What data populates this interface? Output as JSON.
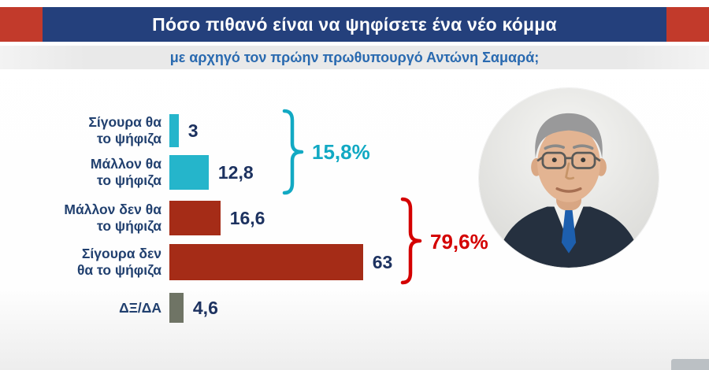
{
  "header": {
    "title": "Πόσο πιθανό είναι να ψηφίσετε ένα νέο κόμμα",
    "subtitle": "με αρχηγό τον πρώην πρωθυπουργό Αντώνη Σαμαρά;"
  },
  "colors": {
    "title_bg": "#24407c",
    "accent_red": "#c23a2b",
    "subtitle_bg": "#e9e9e9",
    "subtitle_text": "#2a6ab0",
    "label_navy": "#21406f",
    "value_navy": "#1d3260",
    "group_cyan": "#12a9c3",
    "group_red": "#d40000"
  },
  "chart_data": {
    "type": "bar",
    "orientation": "horizontal",
    "title": "Πόσο πιθανό είναι να ψηφίσετε ένα νέο κόμμα",
    "subtitle": "με αρχηγό τον πρώην πρωθυπουργό Αντώνη Σαμαρά;",
    "categories": [
      "Σίγουρα θα το ψήφιζα",
      "Μάλλον θα το ψήφιζα",
      "Μάλλον δεν θα το ψήφιζα",
      "Σίγουρα δεν θα το ψήφιζα",
      "ΔΞ/ΔΑ"
    ],
    "category_lines": [
      [
        "Σίγουρα θα",
        "το ψήφιζα"
      ],
      [
        "Μάλλον θα",
        "το ψήφιζα"
      ],
      [
        "Μάλλον δεν θα",
        "το ψήφιζα"
      ],
      [
        "Σίγουρα δεν",
        "θα το ψήφιζα"
      ],
      [
        "ΔΞ/ΔΑ"
      ]
    ],
    "values": [
      3,
      12.8,
      16.6,
      63,
      4.6
    ],
    "value_labels": [
      "3",
      "12,8",
      "16,6",
      "63",
      "4,6"
    ],
    "bar_colors": [
      "#25b5cb",
      "#25b5cb",
      "#a52c17",
      "#a52c17",
      "#6f7465"
    ],
    "groups": [
      {
        "label": "15,8%",
        "bars": [
          0,
          1
        ],
        "color": "#12a9c3"
      },
      {
        "label": "79,6%",
        "bars": [
          2,
          3
        ],
        "color": "#d40000"
      }
    ],
    "xlim": [
      0,
      70
    ],
    "grid": false,
    "legend": false
  },
  "portrait": {
    "name": "Αντώνης Σαμαράς"
  }
}
